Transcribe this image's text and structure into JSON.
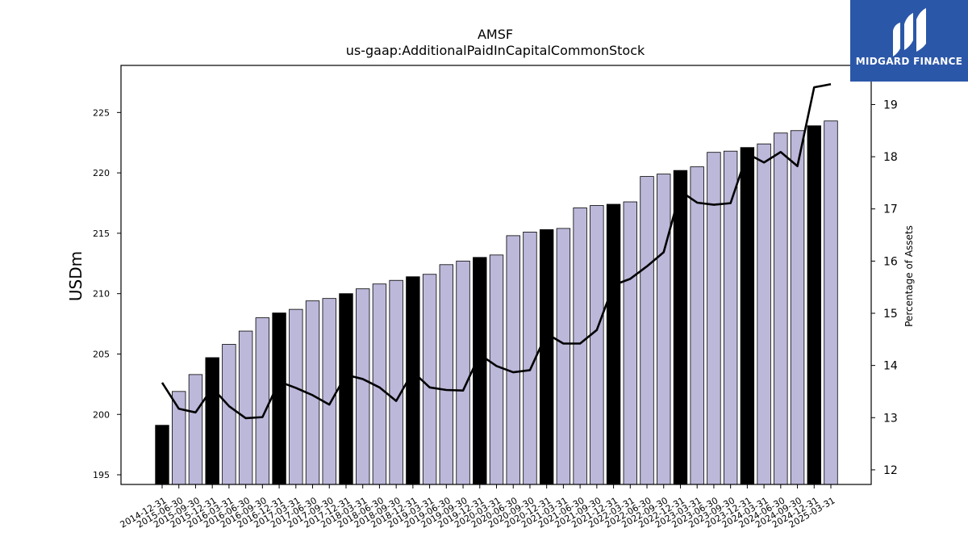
{
  "header": {
    "ticker": "AMSF",
    "metric": "us-gaap:AdditionalPaidInCapitalCommonStock"
  },
  "logo": {
    "text": "MIDGARD FINANCE",
    "bg_color": "#2b57a8"
  },
  "colors": {
    "bar_default": "#bcb8da",
    "bar_highlight": "#000000",
    "line": "#000000"
  },
  "chart_data": {
    "type": "bar",
    "title": "AMSF",
    "subtitle": "us-gaap:AdditionalPaidInCapitalCommonStock",
    "ylabel": "USDm",
    "y2label": "Percentage of Assets",
    "ylim": [
      194.2,
      228.9
    ],
    "y2lim": [
      11.72,
      19.75
    ],
    "yticks": [
      195,
      200,
      205,
      210,
      215,
      220,
      225
    ],
    "y2ticks": [
      12,
      13,
      14,
      15,
      16,
      17,
      18,
      19
    ],
    "grid": false,
    "categories": [
      "2014-12-31",
      "2015-06-30",
      "2015-09-30",
      "2015-12-31",
      "2016-03-31",
      "2016-06-30",
      "2016-09-30",
      "2016-12-31",
      "2017-03-31",
      "2017-06-30",
      "2017-09-30",
      "2017-12-31",
      "2018-03-31",
      "2018-06-30",
      "2018-09-30",
      "2018-12-31",
      "2019-03-31",
      "2019-06-30",
      "2019-09-30",
      "2019-12-31",
      "2020-03-31",
      "2020-06-30",
      "2020-09-30",
      "2020-12-31",
      "2021-03-31",
      "2021-06-30",
      "2021-09-30",
      "2021-12-31",
      "2022-03-31",
      "2022-06-30",
      "2022-09-30",
      "2022-12-31",
      "2023-03-31",
      "2023-06-30",
      "2023-09-30",
      "2023-12-31",
      "2024-03-31",
      "2024-06-30",
      "2024-09-30",
      "2024-12-31",
      "2025-03-31"
    ],
    "series": [
      {
        "type": "bar",
        "axis": "left",
        "values": [
          199.1,
          201.9,
          203.3,
          204.7,
          205.8,
          206.9,
          208.0,
          208.4,
          208.7,
          209.4,
          209.6,
          210.0,
          210.4,
          210.8,
          211.1,
          211.4,
          211.6,
          212.4,
          212.7,
          213.0,
          213.2,
          214.8,
          215.1,
          215.3,
          215.4,
          217.1,
          217.3,
          217.4,
          217.6,
          219.7,
          219.9,
          220.2,
          220.5,
          221.7,
          221.8,
          222.1,
          222.4,
          223.3,
          223.5,
          223.9,
          224.3
        ],
        "highlight": [
          true,
          false,
          false,
          true,
          false,
          false,
          false,
          true,
          false,
          false,
          false,
          true,
          false,
          false,
          false,
          true,
          false,
          false,
          false,
          true,
          false,
          false,
          false,
          true,
          false,
          false,
          false,
          true,
          false,
          false,
          false,
          true,
          false,
          false,
          false,
          true,
          false,
          false,
          false,
          true,
          false
        ]
      },
      {
        "type": "line",
        "axis": "right",
        "values": [
          13.67,
          13.17,
          13.1,
          13.57,
          13.22,
          12.99,
          13.01,
          13.69,
          13.57,
          13.43,
          13.25,
          13.82,
          13.74,
          13.58,
          13.32,
          13.88,
          13.58,
          13.53,
          13.52,
          14.21,
          13.99,
          13.87,
          13.91,
          14.61,
          14.42,
          14.42,
          14.68,
          15.54,
          15.66,
          15.9,
          16.17,
          17.34,
          17.12,
          17.08,
          17.11,
          18.06,
          17.89,
          18.09,
          17.82,
          19.33,
          19.39
        ]
      }
    ]
  }
}
